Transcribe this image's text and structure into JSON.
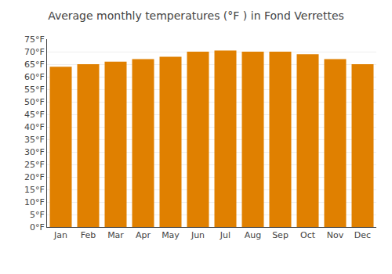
{
  "chart_data": {
    "type": "bar",
    "title": "Average monthly temperatures (°F ) in Fond Verrettes",
    "categories": [
      "Jan",
      "Feb",
      "Mar",
      "Apr",
      "May",
      "Jun",
      "Jul",
      "Aug",
      "Sep",
      "Oct",
      "Nov",
      "Dec"
    ],
    "values": [
      64,
      65,
      66,
      67,
      68,
      70,
      70.5,
      70,
      70,
      69,
      67,
      65
    ],
    "color": "#E08000",
    "ylim": [
      0,
      75
    ],
    "yticks": [
      {
        "value": 0,
        "label": "0°F"
      },
      {
        "value": 5,
        "label": "5°F"
      },
      {
        "value": 10,
        "label": "10°F"
      },
      {
        "value": 15,
        "label": "15°F"
      },
      {
        "value": 20,
        "label": "20°F"
      },
      {
        "value": 25,
        "label": "25°F"
      },
      {
        "value": 30,
        "label": "30°F"
      },
      {
        "value": 35,
        "label": "35°F"
      },
      {
        "value": 40,
        "label": "40°F"
      },
      {
        "value": 45,
        "label": "45°F"
      },
      {
        "value": 50,
        "label": "50°F"
      },
      {
        "value": 55,
        "label": "55°F"
      },
      {
        "value": 60,
        "label": "60°F"
      },
      {
        "value": 65,
        "label": "65°F"
      },
      {
        "value": 70,
        "label": "70°F"
      },
      {
        "value": 75,
        "label": "75°F"
      }
    ],
    "grid": true
  }
}
